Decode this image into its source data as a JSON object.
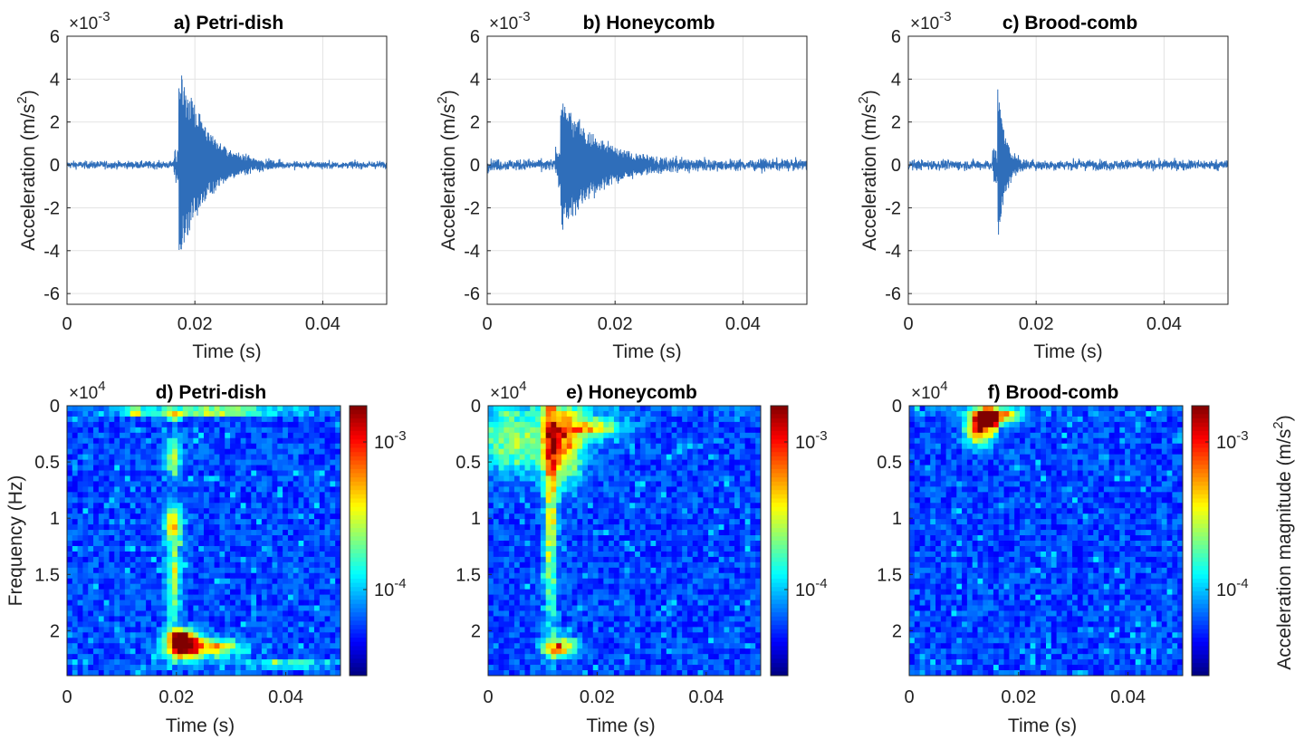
{
  "chart_data": [
    {
      "panel": "a",
      "type": "line",
      "title": "a) Petri-dish",
      "xlabel": "Time (s)",
      "ylabel": "Acceleration (m/s",
      "ylabel_sup": "2",
      "ylabel_end": ")",
      "multiplier": "×10",
      "multiplier_exp": "-3",
      "xlim": [
        0,
        0.05
      ],
      "ylim": [
        -6.5,
        6
      ],
      "xticks": [
        0,
        0.02,
        0.04
      ],
      "xtick_labels": [
        "0",
        "0.02",
        "0.04"
      ],
      "yticks": [
        6,
        4,
        2,
        0,
        -2,
        -4,
        -6
      ],
      "ytick_labels": [
        "6",
        "4",
        "2",
        "0",
        "-2",
        "-4",
        "-6"
      ],
      "grid": true,
      "line_color": "#2f6eba",
      "signal": {
        "noise_amplitude": 0.3,
        "event_time": 0.0175,
        "event_peak": 5.0,
        "event_min": -4.7,
        "event_decay": 0.004
      }
    },
    {
      "panel": "b",
      "type": "line",
      "title": "b) Honeycomb",
      "xlabel": "Time (s)",
      "ylabel": "Acceleration (m/s",
      "ylabel_sup": "2",
      "ylabel_end": ")",
      "multiplier": "×10",
      "multiplier_exp": "-3",
      "xlim": [
        0,
        0.05
      ],
      "ylim": [
        -6.5,
        6
      ],
      "xticks": [
        0,
        0.02,
        0.04
      ],
      "xtick_labels": [
        "0",
        "0.02",
        "0.04"
      ],
      "yticks": [
        6,
        4,
        2,
        0,
        -2,
        -4,
        -6
      ],
      "ytick_labels": [
        "6",
        "4",
        "2",
        "0",
        "-2",
        "-4",
        "-6"
      ],
      "grid": true,
      "line_color": "#2f6eba",
      "signal": {
        "noise_amplitude": 0.45,
        "event_time": 0.0115,
        "event_peak": 3.2,
        "event_min": -3.2,
        "event_decay": 0.006
      }
    },
    {
      "panel": "c",
      "type": "line",
      "title": "c) Brood-comb",
      "xlabel": "Time (s)",
      "ylabel": "Acceleration (m/s",
      "ylabel_sup": "2",
      "ylabel_end": ")",
      "multiplier": "×10",
      "multiplier_exp": "-3",
      "xlim": [
        0,
        0.05
      ],
      "ylim": [
        -6.5,
        6
      ],
      "xticks": [
        0,
        0.02,
        0.04
      ],
      "xtick_labels": [
        "0",
        "0.02",
        "0.04"
      ],
      "yticks": [
        6,
        4,
        2,
        0,
        -2,
        -4,
        -6
      ],
      "ytick_labels": [
        "6",
        "4",
        "2",
        "0",
        "-2",
        "-4",
        "-6"
      ],
      "grid": true,
      "line_color": "#2f6eba",
      "signal": {
        "noise_amplitude": 0.4,
        "event_time": 0.014,
        "event_peak": 3.5,
        "event_min": -3.7,
        "event_decay": 0.0012
      }
    },
    {
      "panel": "d",
      "type": "heatmap",
      "title": "d) Petri-dish",
      "xlabel": "Time (s)",
      "ylabel": "Frequency (Hz)",
      "multiplier": "×10",
      "multiplier_exp": "4",
      "xlim": [
        0,
        0.05
      ],
      "ylim": [
        0,
        2.4
      ],
      "xticks": [
        0,
        0.02,
        0.04
      ],
      "xtick_labels": [
        "0",
        "0.02",
        "0.04"
      ],
      "yticks": [
        0,
        0.5,
        1,
        1.5,
        2
      ],
      "ytick_labels": [
        "0",
        "0.5",
        "1",
        "1.5",
        "2"
      ],
      "grid": false,
      "colorbar": {
        "ticks": [
          "10",
          "10"
        ],
        "tick_exps": [
          "-3",
          "-4"
        ],
        "label": ""
      },
      "hotspots": [
        {
          "t": 0.0195,
          "f": 0.1,
          "level": 0.5,
          "dt": 0.0008,
          "df": 0.02
        },
        {
          "t": 0.0195,
          "f": 0.45,
          "level": 0.42,
          "dt": 0.001,
          "df": 0.12
        },
        {
          "t": 0.0195,
          "f": 1.05,
          "level": 0.5,
          "dt": 0.0012,
          "df": 0.1
        },
        {
          "t": 0.0195,
          "f": 1.55,
          "level": 0.45,
          "dt": 0.0009,
          "df": 0.25
        },
        {
          "t": 0.0215,
          "f": 2.15,
          "level": 0.85,
          "dt": 0.0025,
          "df": 0.08
        },
        {
          "t": 0.0205,
          "f": 2.05,
          "level": 0.75,
          "dt": 0.0015,
          "df": 0.05
        },
        {
          "t": 0.028,
          "f": 2.15,
          "level": 0.45,
          "dt": 0.003,
          "df": 0.06
        },
        {
          "t": 0.025,
          "f": 0.05,
          "level": 0.42,
          "dt": 0.01,
          "df": 0.03
        },
        {
          "t": 0.0125,
          "f": 0.05,
          "level": 0.4,
          "dt": 0.001,
          "df": 0.02
        },
        {
          "t": 0.04,
          "f": 2.3,
          "level": 0.4,
          "dt": 0.006,
          "df": 0.02
        }
      ]
    },
    {
      "panel": "e",
      "type": "heatmap",
      "title": "e) Honeycomb",
      "xlabel": "Time (s)",
      "ylabel": "",
      "multiplier": "×10",
      "multiplier_exp": "4",
      "xlim": [
        0,
        0.05
      ],
      "ylim": [
        0,
        2.4
      ],
      "xticks": [
        0,
        0.02,
        0.04
      ],
      "xtick_labels": [
        "0",
        "0.02",
        "0.04"
      ],
      "yticks": [
        0,
        0.5,
        1,
        1.5,
        2
      ],
      "ytick_labels": [
        "0",
        "0.5",
        "1",
        "1.5",
        "2"
      ],
      "grid": false,
      "colorbar": {
        "ticks": [
          "10",
          "10"
        ],
        "tick_exps": [
          "-3",
          "-4"
        ],
        "label": ""
      },
      "hotspots": [
        {
          "t": 0.0135,
          "f": 0.3,
          "level": 0.6,
          "dt": 0.003,
          "df": 0.25
        },
        {
          "t": 0.0115,
          "f": 0.9,
          "level": 0.45,
          "dt": 0.0008,
          "df": 0.8
        },
        {
          "t": 0.013,
          "f": 2.15,
          "level": 0.65,
          "dt": 0.002,
          "df": 0.06
        },
        {
          "t": 0.004,
          "f": 0.3,
          "level": 0.35,
          "dt": 0.004,
          "df": 0.2
        },
        {
          "t": 0.02,
          "f": 0.2,
          "level": 0.4,
          "dt": 0.004,
          "df": 0.06
        }
      ]
    },
    {
      "panel": "f",
      "type": "heatmap",
      "title": "f) Brood-comb",
      "xlabel": "Time (s)",
      "ylabel": "",
      "multiplier": "×10",
      "multiplier_exp": "4",
      "xlim": [
        0,
        0.05
      ],
      "ylim": [
        0,
        2.4
      ],
      "xticks": [
        0,
        0.02,
        0.04
      ],
      "xtick_labels": [
        "0",
        "0.02",
        "0.04"
      ],
      "yticks": [
        0,
        0.5,
        1,
        1.5,
        2
      ],
      "ytick_labels": [
        "0",
        "0.5",
        "1",
        "1.5",
        "2"
      ],
      "grid": false,
      "colorbar": {
        "ticks": [
          "10",
          "10"
        ],
        "tick_exps": [
          "-3",
          "-4"
        ],
        "label": "Acceleration magnitude (m/s",
        "label_sup": "2",
        "label_end": ")"
      },
      "hotspots": [
        {
          "t": 0.0145,
          "f": 0.12,
          "level": 0.95,
          "dt": 0.0012,
          "df": 0.05
        },
        {
          "t": 0.013,
          "f": 0.2,
          "level": 0.7,
          "dt": 0.0018,
          "df": 0.1
        },
        {
          "t": 0.016,
          "f": 0.08,
          "level": 0.6,
          "dt": 0.003,
          "df": 0.05
        }
      ]
    }
  ]
}
